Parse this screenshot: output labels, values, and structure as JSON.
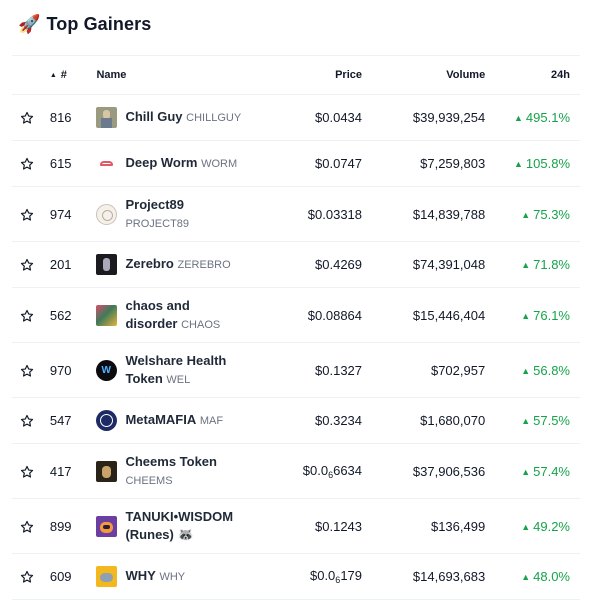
{
  "widget": {
    "title": "Top Gainers",
    "title_icon": "rocket-icon"
  },
  "columns": {
    "rank": "#",
    "name": "Name",
    "price": "Price",
    "volume": "Volume",
    "change": "24h"
  },
  "colors": {
    "positive": "#16a34a",
    "text": "#111827",
    "muted": "#6b7280",
    "border": "#eef0f3"
  },
  "rows": [
    {
      "rank": "816",
      "name": "Chill Guy",
      "symbol": "CHILLGUY",
      "price": "$0.0434",
      "volume": "$39,939,254",
      "change": "495.1%",
      "name_lines": 1
    },
    {
      "rank": "615",
      "name": "Deep Worm",
      "symbol": "WORM",
      "price": "$0.0747",
      "volume": "$7,259,803",
      "change": "105.8%",
      "name_lines": 1
    },
    {
      "rank": "974",
      "name": "Project89",
      "symbol": "PROJECT89",
      "price": "$0.03318",
      "volume": "$14,839,788",
      "change": "75.3%",
      "name_lines": 2
    },
    {
      "rank": "201",
      "name": "Zerebro",
      "symbol": "ZEREBRO",
      "price": "$0.4269",
      "volume": "$74,391,048",
      "change": "71.8%",
      "name_lines": 1
    },
    {
      "rank": "562",
      "name_l1": "chaos and",
      "name_l2": "disorder",
      "symbol": "CHAOS",
      "price": "$0.08864",
      "volume": "$15,446,404",
      "change": "76.1%",
      "name_lines": 2
    },
    {
      "rank": "970",
      "name_l1": "Welshare Health",
      "name_l2": "Token",
      "symbol": "WEL",
      "price": "$0.1327",
      "volume": "$702,957",
      "change": "56.8%",
      "name_lines": 2
    },
    {
      "rank": "547",
      "name": "MetaMAFIA",
      "symbol": "MAF",
      "price": "$0.3234",
      "volume": "$1,680,070",
      "change": "57.5%",
      "name_lines": 1
    },
    {
      "rank": "417",
      "name": "Cheems Token",
      "symbol": "CHEEMS",
      "price_main": "$0.0",
      "price_sub": "6",
      "price_rest": "6634",
      "volume": "$37,906,536",
      "change": "57.4%",
      "name_lines": 2
    },
    {
      "rank": "899",
      "name_l1": "TANUKI•WISDOM",
      "name_l2": "(Runes) 🦝",
      "symbol": "",
      "price": "$0.1243",
      "volume": "$136,499",
      "change": "49.2%",
      "name_lines": 2
    },
    {
      "rank": "609",
      "name": "WHY",
      "symbol": "WHY",
      "price_main": "$0.0",
      "price_sub": "6",
      "price_rest": "179",
      "volume": "$14,693,683",
      "change": "48.0%",
      "name_lines": 1
    }
  ]
}
